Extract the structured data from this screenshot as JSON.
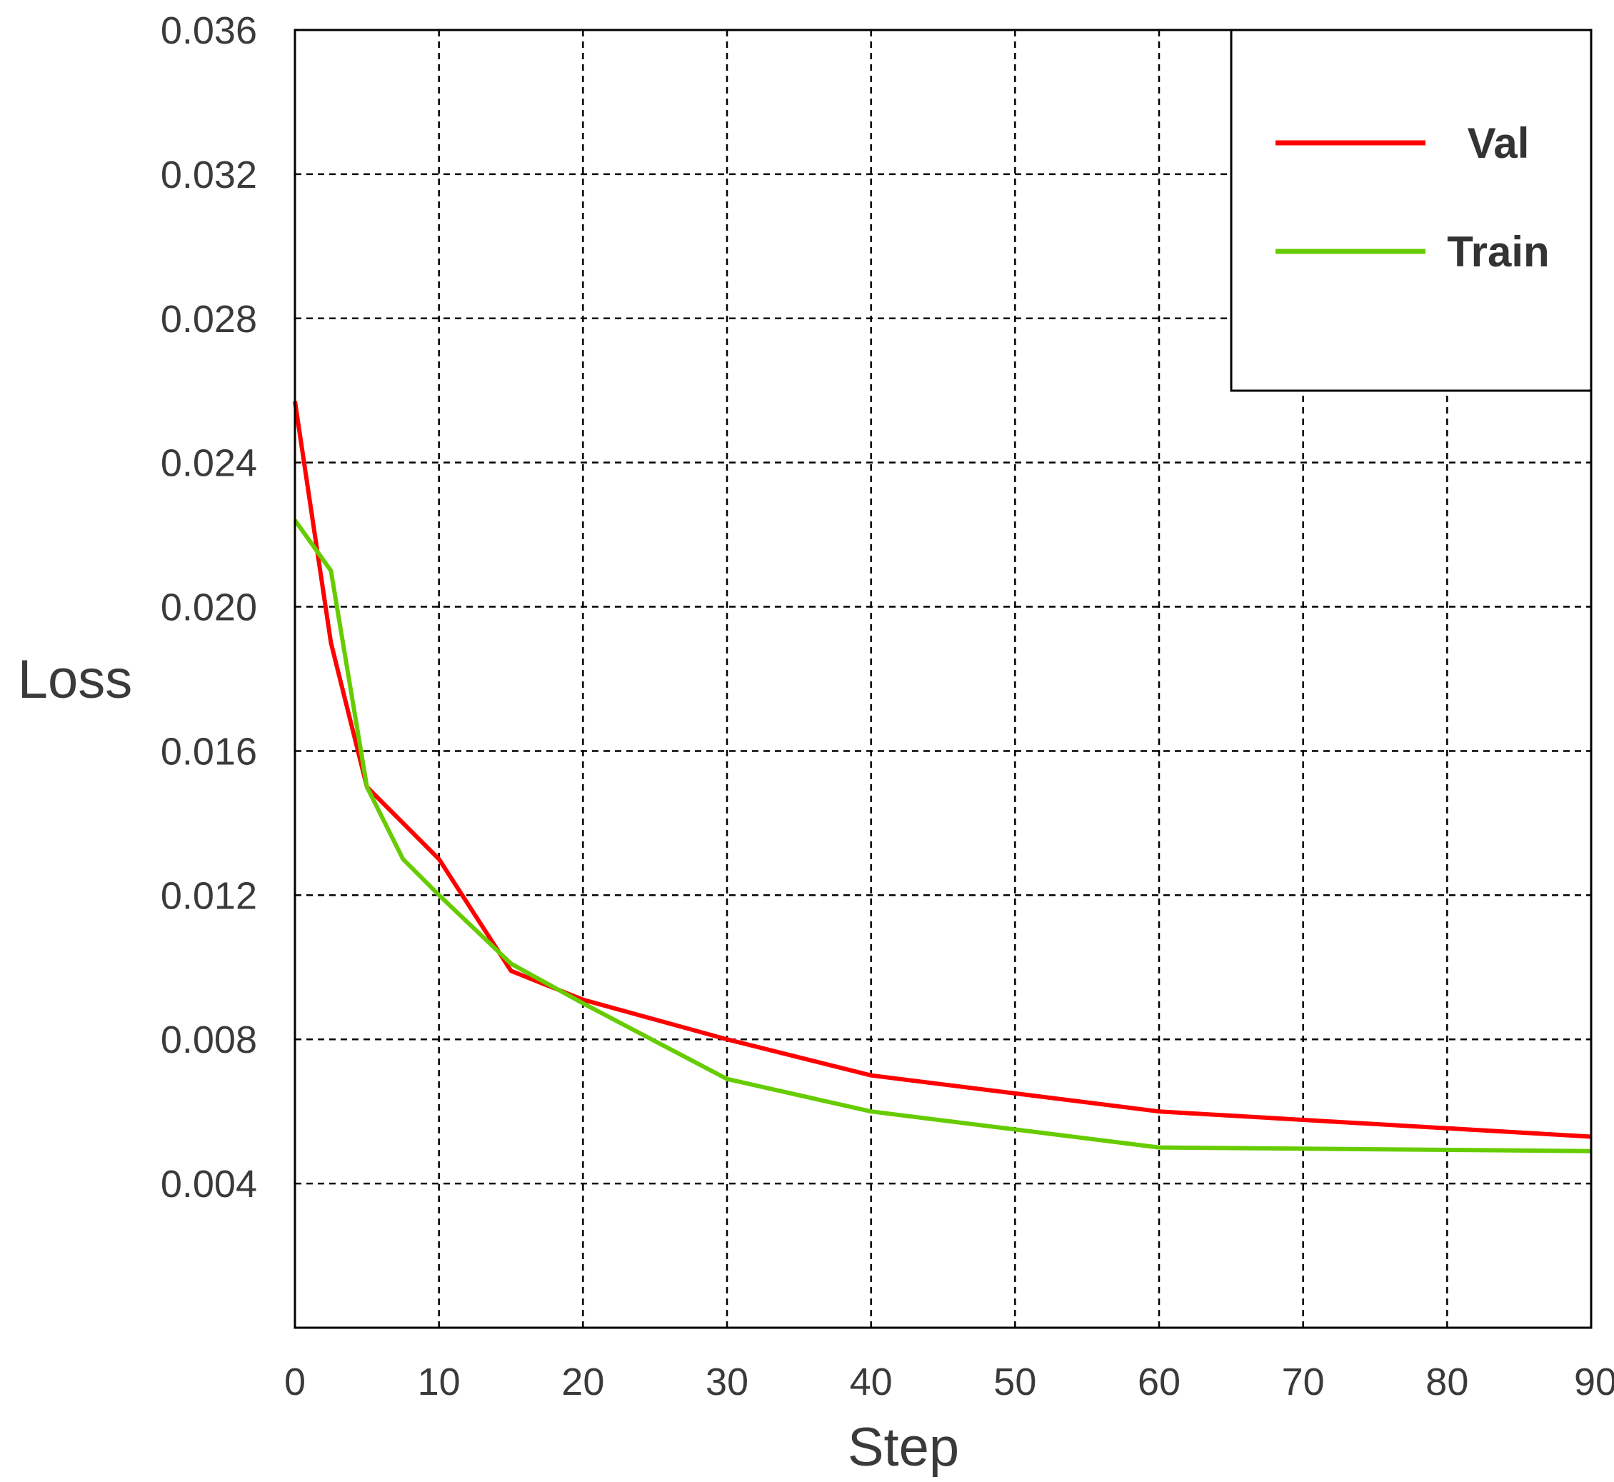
{
  "chart_data": {
    "type": "line",
    "xlabel": "Step",
    "ylabel": "Loss",
    "xlim": [
      0,
      90
    ],
    "ylim": [
      0,
      0.036
    ],
    "xticks": [
      0,
      10,
      20,
      30,
      40,
      50,
      60,
      70,
      80,
      90
    ],
    "xtick_labels": [
      "0",
      "10",
      "20",
      "30",
      "40",
      "50",
      "60",
      "70",
      "80",
      "90"
    ],
    "yticks": [
      0.004,
      0.008,
      0.012,
      0.016,
      0.02,
      0.024,
      0.028,
      0.032,
      0.036
    ],
    "ytick_labels": [
      "0.004",
      "0.008",
      "0.012",
      "0.016",
      "0.020",
      "0.024",
      "0.028",
      "0.032",
      "0.036"
    ],
    "grid": true,
    "grid_style": "dashed",
    "legend_position": "top-right",
    "series": [
      {
        "name": "Val",
        "color": "#ff0000",
        "x": [
          0,
          2.5,
          5,
          10,
          15,
          20,
          30,
          40,
          50,
          60,
          90
        ],
        "y": [
          0.0257,
          0.019,
          0.015,
          0.013,
          0.0099,
          0.0091,
          0.008,
          0.007,
          0.0065,
          0.006,
          0.0053
        ]
      },
      {
        "name": "Train",
        "color": "#66cc00",
        "x": [
          0,
          2.5,
          5,
          7.5,
          10,
          15,
          20,
          30,
          40,
          50,
          60,
          90
        ],
        "y": [
          0.0224,
          0.021,
          0.015,
          0.013,
          0.012,
          0.0101,
          0.009,
          0.0069,
          0.006,
          0.0055,
          0.005,
          0.0049
        ]
      }
    ]
  }
}
